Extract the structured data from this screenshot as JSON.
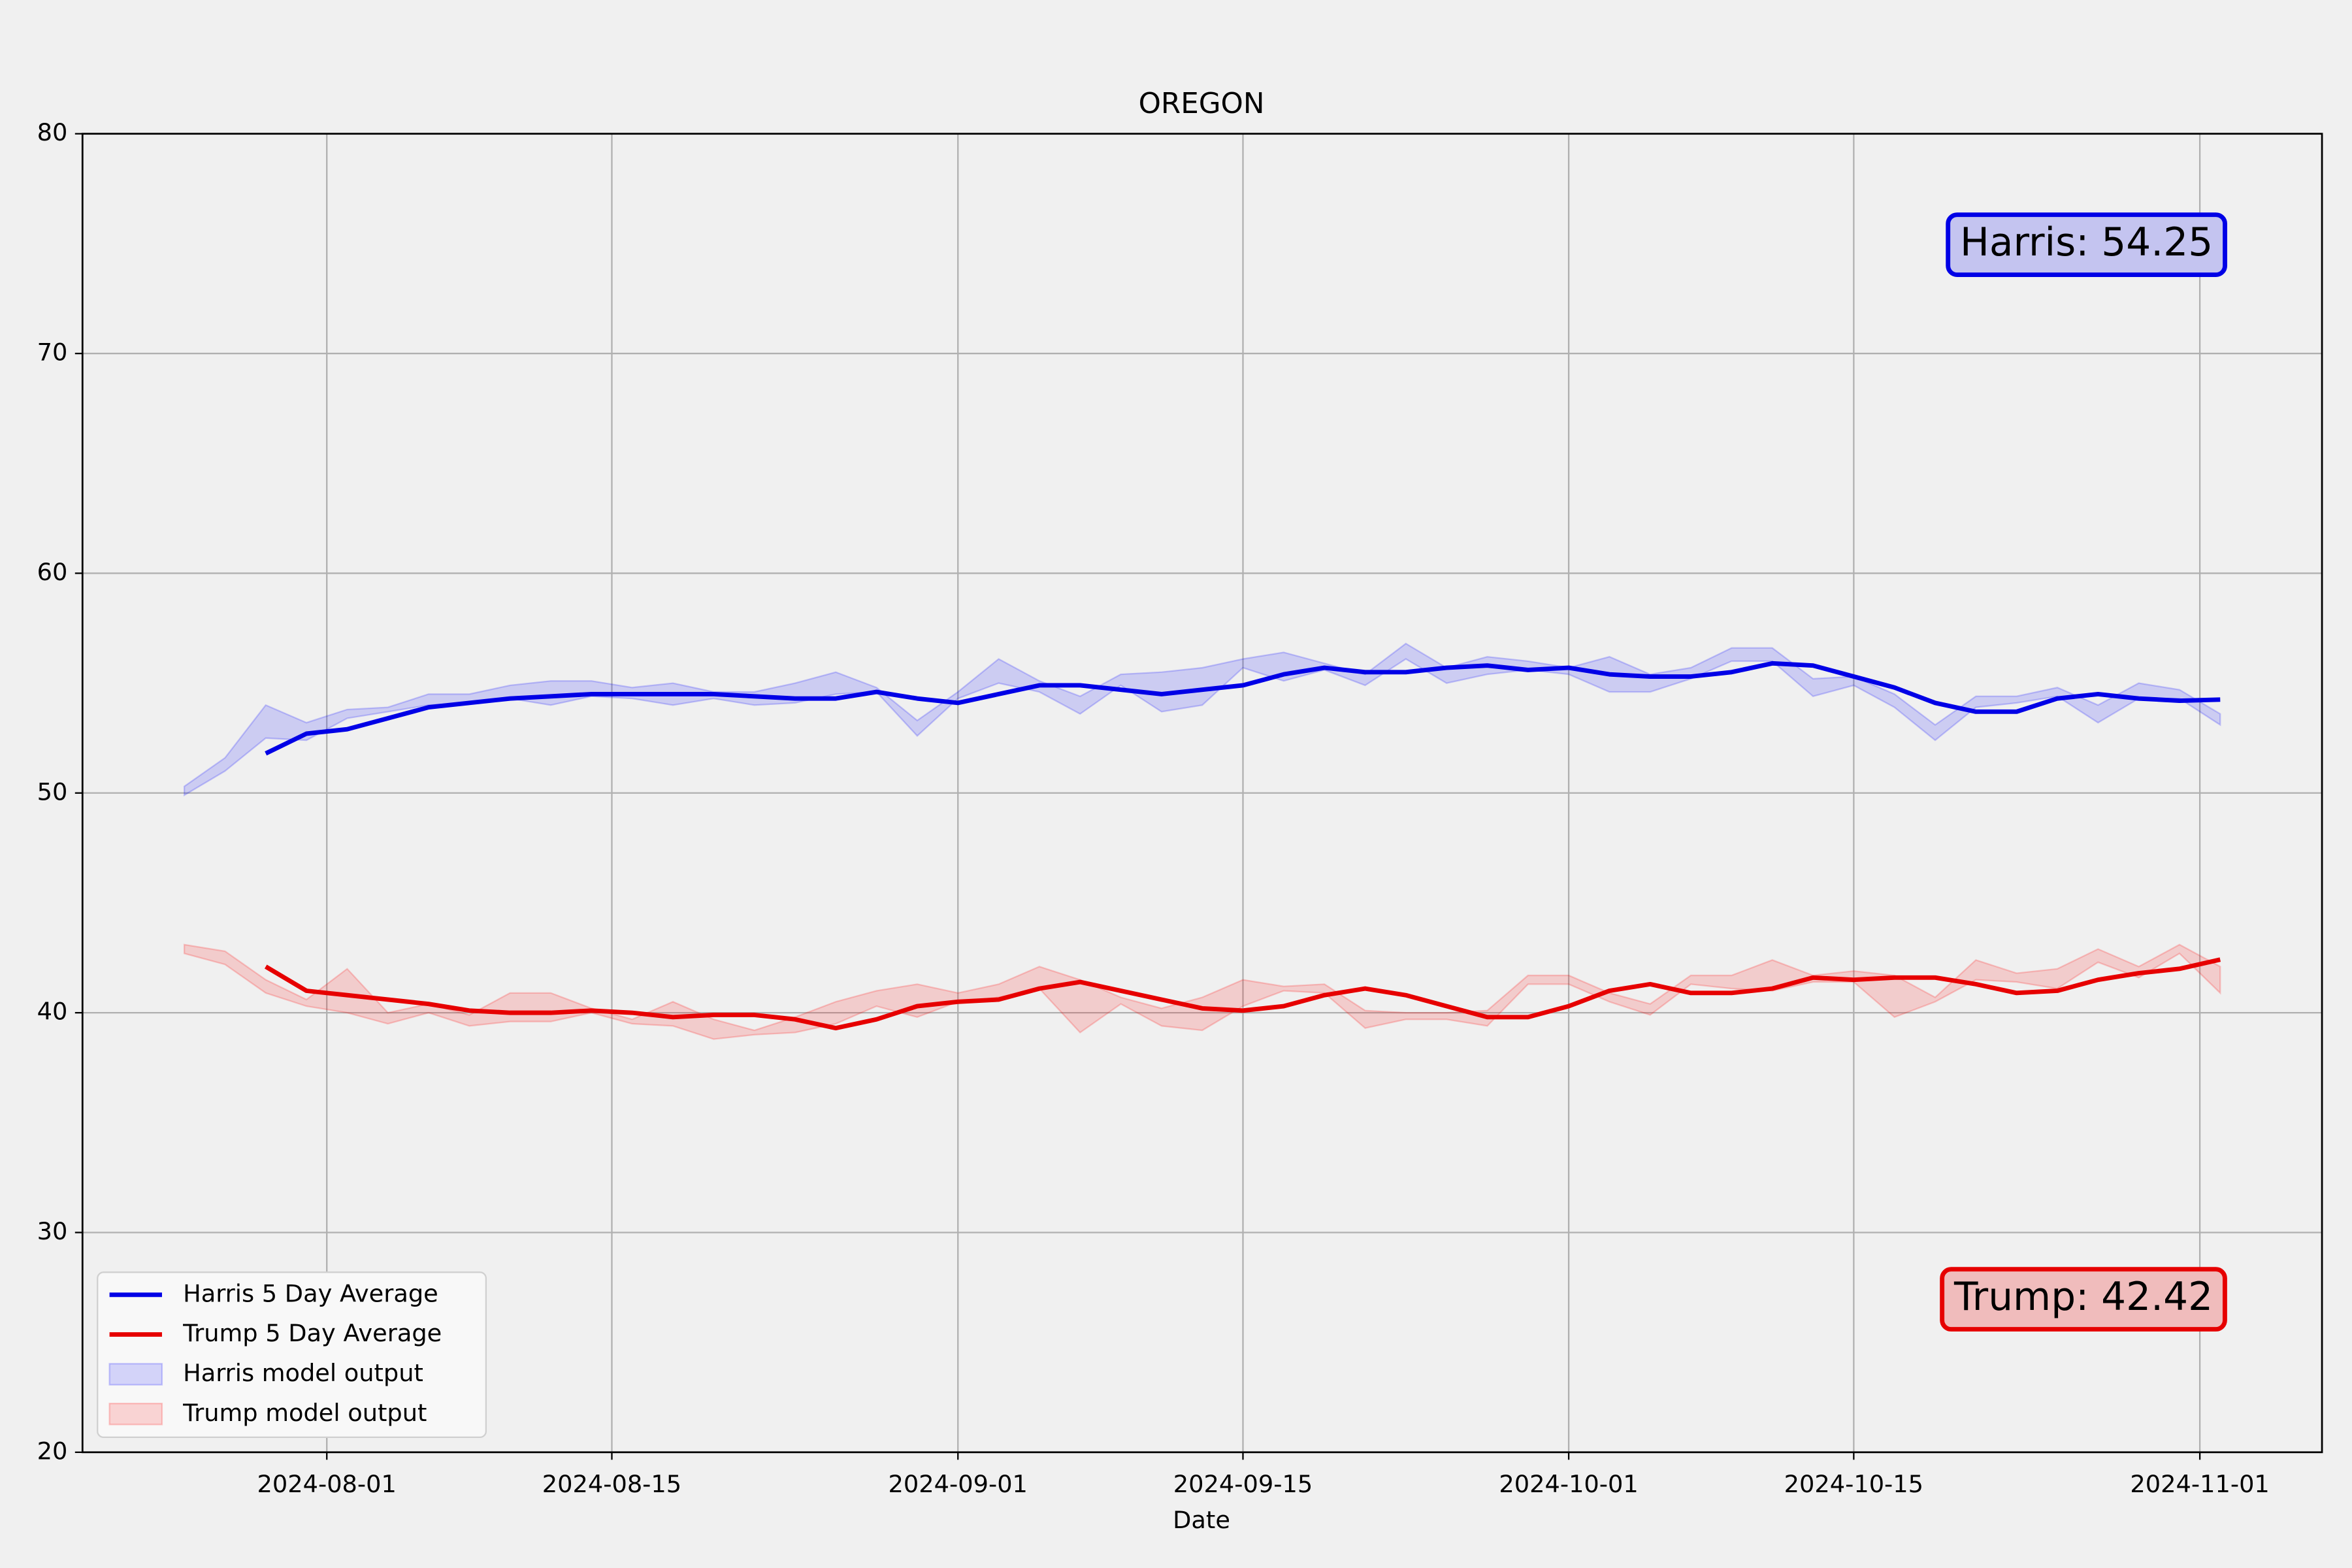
{
  "chart_data": {
    "type": "line",
    "title": "OREGON",
    "xlabel": "Date",
    "grid": true,
    "legend": "lower left",
    "xlim": [
      "2024-07-20",
      "2024-11-07"
    ],
    "xticks": [
      "2024-08-01",
      "2024-08-15",
      "2024-09-01",
      "2024-09-15",
      "2024-10-01",
      "2024-10-15",
      "2024-11-01"
    ],
    "ylim": [
      20,
      80
    ],
    "yticks": [
      20,
      30,
      40,
      50,
      60,
      70,
      80
    ],
    "x": [
      "2024-07-25",
      "2024-07-27",
      "2024-07-29",
      "2024-07-31",
      "2024-08-02",
      "2024-08-04",
      "2024-08-06",
      "2024-08-08",
      "2024-08-10",
      "2024-08-12",
      "2024-08-14",
      "2024-08-16",
      "2024-08-18",
      "2024-08-20",
      "2024-08-22",
      "2024-08-24",
      "2024-08-26",
      "2024-08-28",
      "2024-08-30",
      "2024-09-01",
      "2024-09-03",
      "2024-09-05",
      "2024-09-07",
      "2024-09-09",
      "2024-09-11",
      "2024-09-13",
      "2024-09-15",
      "2024-09-17",
      "2024-09-19",
      "2024-09-21",
      "2024-09-23",
      "2024-09-25",
      "2024-09-27",
      "2024-09-29",
      "2024-10-01",
      "2024-10-03",
      "2024-10-05",
      "2024-10-07",
      "2024-10-09",
      "2024-10-11",
      "2024-10-13",
      "2024-10-15",
      "2024-10-17",
      "2024-10-19",
      "2024-10-21",
      "2024-10-23",
      "2024-10-25",
      "2024-10-27",
      "2024-10-29",
      "2024-10-31",
      "2024-11-02"
    ],
    "series": [
      {
        "name": "Harris 5 Day Average",
        "color": "#0000e6",
        "values": [
          null,
          null,
          51.8,
          52.7,
          52.9,
          53.4,
          53.9,
          54.1,
          54.3,
          54.4,
          54.5,
          54.5,
          54.5,
          54.5,
          54.4,
          54.3,
          54.3,
          54.6,
          54.3,
          54.1,
          54.5,
          54.9,
          54.9,
          54.7,
          54.5,
          54.7,
          54.9,
          55.4,
          55.7,
          55.5,
          55.5,
          55.7,
          55.8,
          55.6,
          55.7,
          55.4,
          55.3,
          55.3,
          55.5,
          55.9,
          55.8,
          55.3,
          54.8,
          54.1,
          53.7,
          53.7,
          54.3,
          54.5,
          54.3,
          54.2,
          54.25
        ]
      },
      {
        "name": "Trump 5 Day Average",
        "color": "#e60000",
        "values": [
          null,
          null,
          42.1,
          41.0,
          40.8,
          40.6,
          40.4,
          40.1,
          40.0,
          40.0,
          40.1,
          40.0,
          39.8,
          39.9,
          39.9,
          39.7,
          39.3,
          39.7,
          40.3,
          40.5,
          40.6,
          41.1,
          41.4,
          41.0,
          40.6,
          40.2,
          40.1,
          40.3,
          40.8,
          41.1,
          40.8,
          40.3,
          39.8,
          39.8,
          40.3,
          41.0,
          41.3,
          40.9,
          40.9,
          41.1,
          41.6,
          41.5,
          41.6,
          41.6,
          41.3,
          40.9,
          41.0,
          41.5,
          41.8,
          42.0,
          42.42
        ]
      }
    ],
    "bands": [
      {
        "name": "Harris model output",
        "color": "#0000ff",
        "low": [
          49.9,
          51.0,
          52.5,
          52.4,
          53.4,
          53.7,
          54.0,
          54.1,
          54.3,
          54.0,
          54.4,
          54.3,
          54.0,
          54.3,
          54.0,
          54.1,
          54.5,
          54.6,
          52.6,
          54.3,
          55.0,
          54.6,
          53.6,
          54.9,
          53.7,
          54.0,
          55.7,
          55.1,
          55.6,
          54.9,
          56.1,
          55.0,
          55.4,
          55.6,
          55.4,
          54.6,
          54.6,
          55.2,
          56.0,
          56.0,
          54.4,
          54.9,
          53.9,
          52.4,
          53.9,
          54.1,
          54.4,
          53.2,
          54.3,
          54.3,
          53.1
        ],
        "high": [
          50.3,
          51.6,
          54.0,
          53.2,
          53.8,
          53.9,
          54.5,
          54.5,
          54.9,
          55.1,
          55.1,
          54.8,
          55.0,
          54.6,
          54.6,
          55.0,
          55.5,
          54.8,
          53.3,
          54.6,
          56.1,
          55.1,
          54.4,
          55.4,
          55.5,
          55.7,
          56.1,
          56.4,
          55.9,
          55.4,
          56.8,
          55.7,
          56.2,
          56.0,
          55.7,
          56.2,
          55.4,
          55.7,
          56.6,
          56.6,
          55.2,
          55.3,
          54.5,
          53.1,
          54.4,
          54.4,
          54.8,
          54.0,
          55.0,
          54.7,
          53.6
        ]
      },
      {
        "name": "Trump model output",
        "color": "#ff0000",
        "low": [
          42.7,
          42.2,
          40.9,
          40.3,
          40.0,
          39.5,
          40.0,
          39.4,
          39.6,
          39.6,
          40.0,
          39.5,
          39.4,
          38.8,
          39.0,
          39.1,
          39.5,
          40.3,
          39.8,
          40.5,
          40.7,
          41.1,
          39.1,
          40.4,
          39.4,
          39.2,
          40.3,
          41.0,
          40.9,
          39.3,
          39.7,
          39.7,
          39.4,
          41.3,
          41.3,
          40.5,
          39.9,
          41.3,
          41.1,
          41.0,
          41.4,
          41.4,
          39.8,
          40.5,
          41.5,
          41.4,
          41.1,
          42.3,
          41.6,
          42.7,
          40.9
        ],
        "high": [
          43.1,
          42.8,
          41.5,
          40.6,
          42.0,
          40.0,
          40.4,
          39.9,
          40.9,
          40.9,
          40.2,
          39.7,
          40.5,
          39.7,
          39.2,
          39.8,
          40.5,
          41.0,
          41.3,
          40.9,
          41.3,
          42.1,
          41.5,
          40.7,
          40.2,
          40.7,
          41.5,
          41.2,
          41.3,
          40.1,
          40.0,
          40.0,
          40.1,
          41.7,
          41.7,
          40.9,
          40.4,
          41.7,
          41.7,
          42.4,
          41.7,
          41.9,
          41.7,
          40.7,
          42.4,
          41.8,
          42.0,
          42.9,
          42.1,
          43.1,
          42.1
        ]
      }
    ],
    "annotations": [
      {
        "text": "Harris: 54.25",
        "color": "#0000e6",
        "facecolor": "#c4c4f0"
      },
      {
        "text": "Trump: 42.42",
        "color": "#e60000",
        "facecolor": "#f0bcbc"
      }
    ]
  }
}
